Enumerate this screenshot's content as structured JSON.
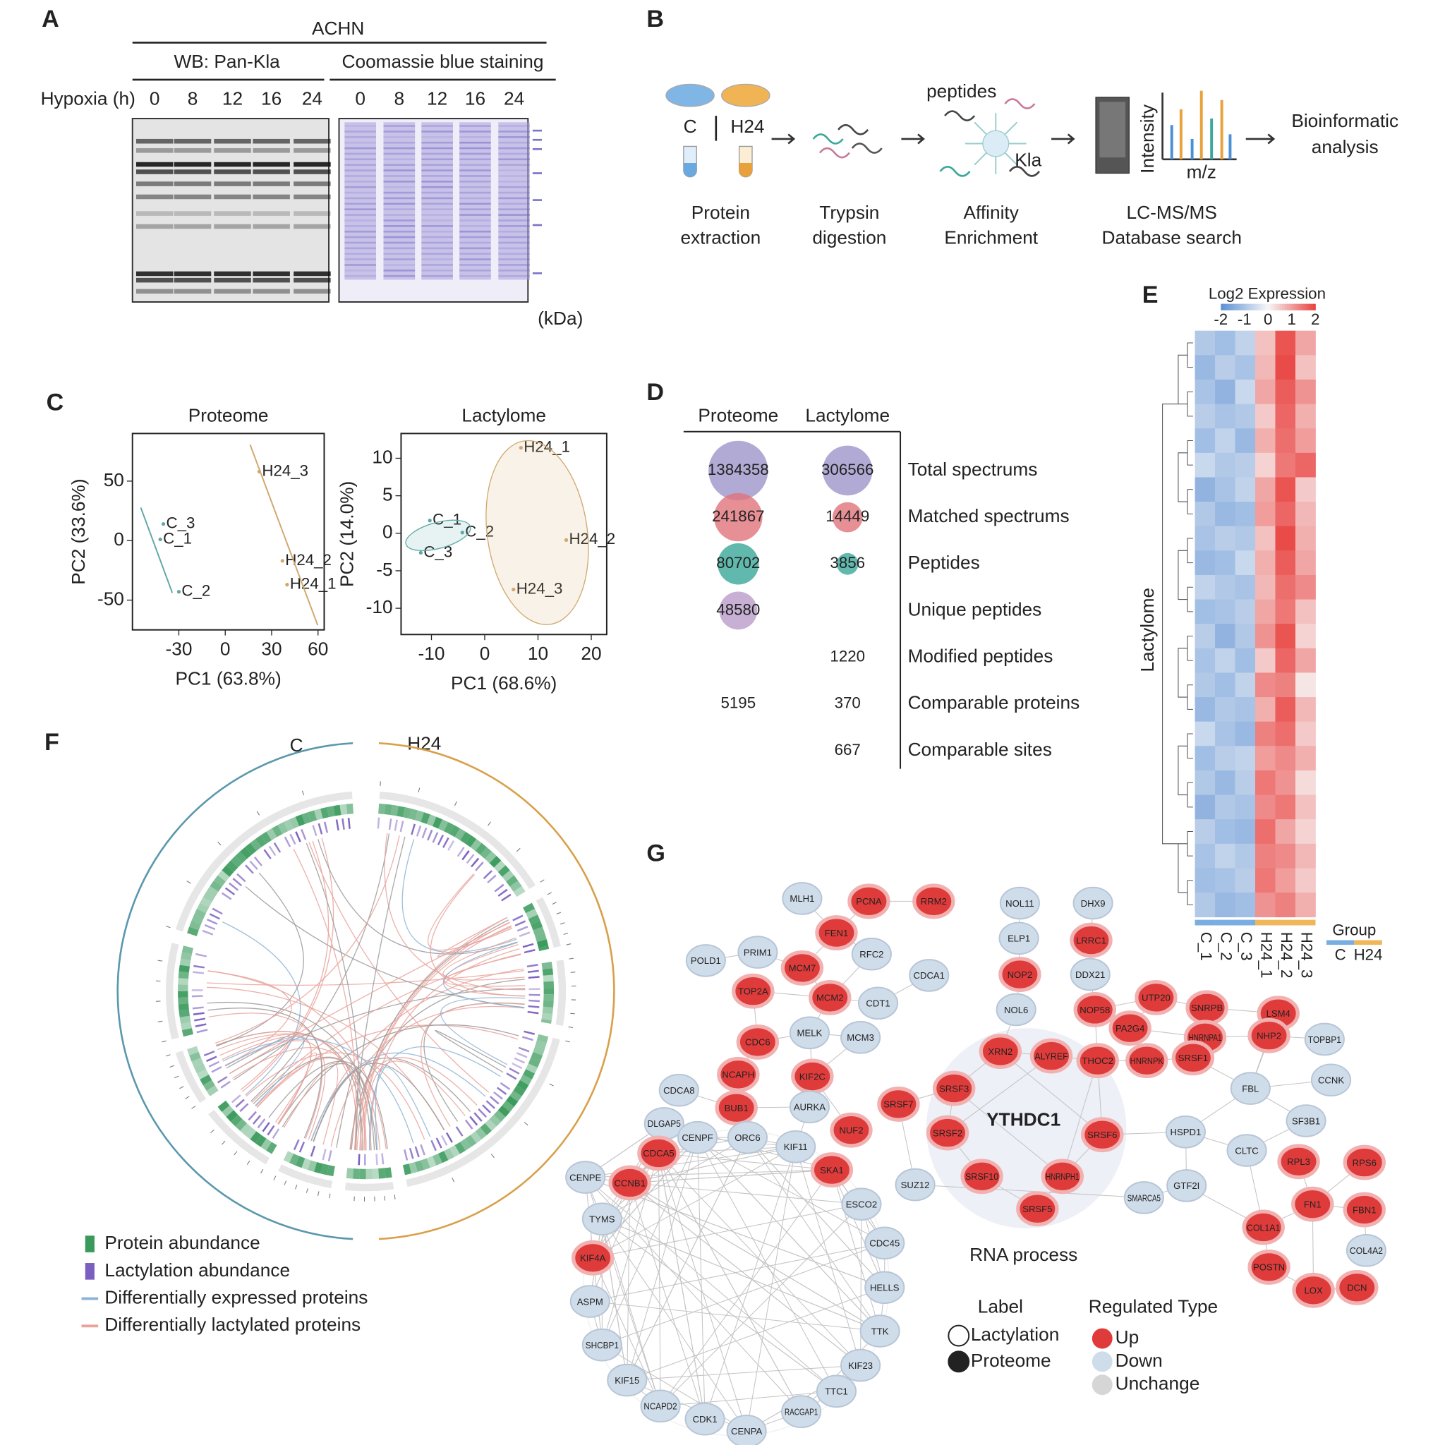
{
  "panels": {
    "A": {
      "letter": "A",
      "cell_line": "ACHN",
      "wb_label": "WB: Pan-Kla",
      "coomassie_label": "Coomassie blue staining",
      "hypoxia_label": "Hypoxia (h)",
      "wb_times": [
        "0",
        "8",
        "12",
        "16",
        "24"
      ],
      "cb_times": [
        "0",
        "8",
        "12",
        "16",
        "24"
      ],
      "kda_unit": "(kDa)"
    },
    "B": {
      "letter": "B",
      "groups": [
        "C",
        "H24"
      ],
      "peptides": "peptides",
      "kla": "Kla",
      "intensity": "Intensity",
      "mz": "m/z",
      "steps": [
        [
          "Protein",
          "extraction"
        ],
        [
          "Trypsin",
          "digestion"
        ],
        [
          "Affinity",
          "Enrichment"
        ],
        [
          "LC-MS/MS",
          "Database search"
        ]
      ],
      "final": [
        "Bioinformatic",
        "analysis"
      ]
    },
    "C": {
      "letter": "C",
      "plots": [
        {
          "title": "Proteome",
          "xlabel": "PC1 (63.8%)",
          "ylabel": "PC2 (33.6%)",
          "xlim": [
            -60,
            64
          ],
          "ylim": [
            -75,
            90
          ],
          "xticks": [
            -30,
            0,
            30,
            60
          ],
          "yticks": [
            -50,
            0,
            50
          ],
          "series": [
            {
              "color": "#5fa8a6",
              "labels": [
                "C_3",
                "C_1",
                "C_2"
              ],
              "x": [
                -40,
                -42,
                -30
              ],
              "y": [
                14,
                1,
                -43
              ]
            },
            {
              "color": "#d1a86c",
              "labels": [
                "H24_3",
                "H24_2",
                "H24_1"
              ],
              "x": [
                22,
                37,
                40
              ],
              "y": [
                58,
                -17,
                -37
              ]
            }
          ]
        },
        {
          "title": "Lactylome",
          "xlabel": "PC1 (68.6%)",
          "ylabel": "PC2 (14.0%)",
          "xlim": [
            -15.7,
            22.9
          ],
          "ylim": [
            -13.5,
            13.3
          ],
          "xticks": [
            -10,
            0,
            10,
            20
          ],
          "yticks": [
            -10,
            -5,
            0,
            5,
            10
          ],
          "series": [
            {
              "color": "#5fa8a6",
              "labels": [
                "C_1",
                "C_2",
                "C_3"
              ],
              "x": [
                -10.3,
                -4.2,
                -12
              ],
              "y": [
                1.7,
                0.1,
                -2.6
              ]
            },
            {
              "color": "#d1a86c",
              "labels": [
                "H24_1",
                "H24_2",
                "H24_3"
              ],
              "x": [
                6.8,
                15.3,
                5.4
              ],
              "y": [
                11.4,
                -0.9,
                -7.5
              ]
            }
          ]
        }
      ]
    },
    "D": {
      "letter": "D",
      "columns": [
        "Proteome",
        "Lactylome"
      ],
      "rows": [
        {
          "label": "Total spectrums",
          "proteome": 1384358,
          "lactylome": 306566,
          "color": "#9d95c9"
        },
        {
          "label": "Matched spectrums",
          "proteome": 241867,
          "lactylome": 14449,
          "color": "#e0737b"
        },
        {
          "label": "Peptides",
          "proteome": 80702,
          "lactylome": 3856,
          "color": "#3aa89a"
        },
        {
          "label": "Unique peptides",
          "proteome": 48580,
          "lactylome": null,
          "color": "#b99cc9"
        },
        {
          "label": "Modified peptides",
          "proteome": null,
          "lactylome": 1220,
          "color": null
        },
        {
          "label": "Comparable proteins",
          "proteome": 5195,
          "lactylome": 370,
          "color": null
        },
        {
          "label": "Comparable sites",
          "proteome": null,
          "lactylome": 667,
          "color": null
        }
      ]
    },
    "E": {
      "letter": "E",
      "legend_title": "Log2 Expression",
      "colormap": [
        "#5b8fd4",
        "#f7f7f7",
        "#e8423f"
      ],
      "clim": [
        -2,
        2
      ],
      "ticks": [
        -2,
        -1,
        0,
        1,
        2
      ],
      "ylabel": "Lactylome",
      "group_title": "Group",
      "groups": [
        {
          "name": "C",
          "color": "#7aaee0"
        },
        {
          "name": "H24",
          "color": "#f0b65a"
        }
      ],
      "columns": [
        {
          "label": "C_1",
          "group": "C"
        },
        {
          "label": "C_2",
          "group": "C"
        },
        {
          "label": "C_3",
          "group": "C"
        },
        {
          "label": "H24_1",
          "group": "H24"
        },
        {
          "label": "H24_2",
          "group": "H24"
        },
        {
          "label": "H24_3",
          "group": "H24"
        }
      ],
      "values": [
        [
          -0.9,
          -1.1,
          -0.7,
          0.6,
          1.8,
          0.9
        ],
        [
          -1.2,
          -0.8,
          -1.0,
          0.7,
          1.9,
          0.6
        ],
        [
          -1.0,
          -1.3,
          -0.6,
          0.9,
          1.7,
          1.1
        ],
        [
          -0.8,
          -1.0,
          -0.9,
          0.5,
          1.6,
          0.8
        ],
        [
          -1.1,
          -0.7,
          -1.2,
          0.8,
          1.5,
          1.0
        ],
        [
          -0.6,
          -0.9,
          -0.8,
          0.4,
          1.4,
          1.6
        ],
        [
          -1.3,
          -1.0,
          -0.7,
          0.9,
          1.8,
          0.5
        ],
        [
          -0.9,
          -1.2,
          -1.1,
          1.0,
          1.6,
          0.7
        ],
        [
          -1.0,
          -0.8,
          -0.9,
          0.6,
          1.9,
          0.8
        ],
        [
          -1.2,
          -1.1,
          -0.6,
          0.8,
          1.7,
          0.9
        ],
        [
          -0.7,
          -0.9,
          -1.0,
          0.7,
          1.5,
          1.2
        ],
        [
          -1.1,
          -1.0,
          -0.8,
          0.9,
          1.4,
          0.6
        ],
        [
          -0.8,
          -1.3,
          -0.9,
          1.1,
          1.8,
          0.4
        ],
        [
          -1.0,
          -0.7,
          -1.1,
          0.5,
          1.6,
          0.9
        ],
        [
          -0.9,
          -1.1,
          -0.7,
          1.2,
          1.3,
          0.2
        ],
        [
          -1.2,
          -0.9,
          -1.0,
          0.8,
          1.7,
          0.7
        ],
        [
          -0.6,
          -1.0,
          -1.2,
          1.3,
          1.5,
          0.5
        ],
        [
          -1.1,
          -0.8,
          -0.7,
          1.0,
          1.2,
          0.8
        ],
        [
          -0.9,
          -1.2,
          -0.8,
          1.4,
          1.1,
          0.3
        ],
        [
          -1.3,
          -0.9,
          -1.0,
          1.2,
          1.4,
          0.6
        ],
        [
          -0.8,
          -1.1,
          -1.2,
          1.5,
          0.9,
          0.4
        ],
        [
          -1.0,
          -0.7,
          -0.9,
          1.3,
          1.2,
          0.7
        ],
        [
          -1.1,
          -1.0,
          -0.8,
          1.4,
          1.0,
          0.5
        ],
        [
          -0.9,
          -1.2,
          -1.1,
          1.1,
          1.3,
          0.8
        ]
      ]
    },
    "F": {
      "letter": "F",
      "groups": [
        {
          "name": "C",
          "color": "#5b98ad"
        },
        {
          "name": "H24",
          "color": "#d9a04a"
        }
      ],
      "legend": [
        {
          "label": "Protein abundance",
          "color": "#3a9a5c"
        },
        {
          "label": "Lactylation abundance",
          "color": "#7b5fc0"
        },
        {
          "label": "Differentially expressed proteins",
          "color": "#8db4d6"
        },
        {
          "label": "Differentially lactylated proteins",
          "color": "#e9a39c"
        }
      ]
    },
    "G": {
      "letter": "G",
      "hub": "YTHDC1",
      "module_label": "RNA process",
      "label_title": "Label",
      "label_types": [
        {
          "name": "Lactylation",
          "fill": "#ffffff"
        },
        {
          "name": "Proteome",
          "fill": "#222222"
        }
      ],
      "regulated_title": "Regulated Type",
      "regulated_types": [
        {
          "name": "Up",
          "color": "#e03b3b"
        },
        {
          "name": "Down",
          "color": "#cfdcea"
        },
        {
          "name": "Unchange",
          "color": "#d6d6d6"
        }
      ],
      "nodes": [
        {
          "label": "MLH1",
          "type": "Down"
        },
        {
          "label": "PCNA",
          "type": "Up"
        },
        {
          "label": "RRM2",
          "type": "Up"
        },
        {
          "label": "FEN1",
          "type": "Up"
        },
        {
          "label": "PRIM1",
          "type": "Down"
        },
        {
          "label": "POLD1",
          "type": "Down"
        },
        {
          "label": "RFC2",
          "type": "Down"
        },
        {
          "label": "MCM7",
          "type": "Up"
        },
        {
          "label": "CDCA1",
          "type": "Down"
        },
        {
          "label": "TOP2A",
          "type": "Up"
        },
        {
          "label": "MCM2",
          "type": "Up"
        },
        {
          "label": "CDT1",
          "type": "Down"
        },
        {
          "label": "MELK",
          "type": "Down"
        },
        {
          "label": "MCM3",
          "type": "Down"
        },
        {
          "label": "CDC6",
          "type": "Up"
        },
        {
          "label": "NCAPH",
          "type": "Up"
        },
        {
          "label": "KIF2C",
          "type": "Up"
        },
        {
          "label": "CDCA8",
          "type": "Down"
        },
        {
          "label": "BUB1",
          "type": "Up"
        },
        {
          "label": "AURKA",
          "type": "Down"
        },
        {
          "label": "DLGAP5",
          "type": "Down"
        },
        {
          "label": "CENPF",
          "type": "Down"
        },
        {
          "label": "ORC6",
          "type": "Down"
        },
        {
          "label": "KIF11",
          "type": "Down"
        },
        {
          "label": "NUF2",
          "type": "Up"
        },
        {
          "label": "CDCA5",
          "type": "Up"
        },
        {
          "label": "CCNB1",
          "type": "Up"
        },
        {
          "label": "SKA1",
          "type": "Up"
        },
        {
          "label": "CENPE",
          "type": "Down"
        },
        {
          "label": "TYMS",
          "type": "Down"
        },
        {
          "label": "KIF4A",
          "type": "Up"
        },
        {
          "label": "ASPM",
          "type": "Down"
        },
        {
          "label": "SHCBP1",
          "type": "Down"
        },
        {
          "label": "KIF15",
          "type": "Down"
        },
        {
          "label": "NCAPD2",
          "type": "Down"
        },
        {
          "label": "CDK1",
          "type": "Down"
        },
        {
          "label": "CENPA",
          "type": "Down"
        },
        {
          "label": "RACGAP1",
          "type": "Down"
        },
        {
          "label": "TTC1",
          "type": "Down"
        },
        {
          "label": "KIF23",
          "type": "Down"
        },
        {
          "label": "TTK",
          "type": "Down"
        },
        {
          "label": "HELLS",
          "type": "Down"
        },
        {
          "label": "CDC45",
          "type": "Down"
        },
        {
          "label": "ESCO2",
          "type": "Down"
        },
        {
          "label": "SUZ12",
          "type": "Down"
        },
        {
          "label": "NOL11",
          "type": "Down"
        },
        {
          "label": "DHX9",
          "type": "Down"
        },
        {
          "label": "ELP1",
          "type": "Down"
        },
        {
          "label": "LRRC1",
          "type": "Up"
        },
        {
          "label": "NOP2",
          "type": "Up"
        },
        {
          "label": "DDX21",
          "type": "Down"
        },
        {
          "label": "NOL6",
          "type": "Down"
        },
        {
          "label": "NOP58",
          "type": "Up"
        },
        {
          "label": "UTP20",
          "type": "Up"
        },
        {
          "label": "SNRPB",
          "type": "Up"
        },
        {
          "label": "LSM4",
          "type": "Up"
        },
        {
          "label": "PA2G4",
          "type": "Up"
        },
        {
          "label": "HNRNPA1",
          "type": "Up"
        },
        {
          "label": "NHP2",
          "type": "Up"
        },
        {
          "label": "TOPBP1",
          "type": "Down"
        },
        {
          "label": "HNRNPK",
          "type": "Up"
        },
        {
          "label": "SRSF1",
          "type": "Up"
        },
        {
          "label": "FBL",
          "type": "Down"
        },
        {
          "label": "CCNK",
          "type": "Down"
        },
        {
          "label": "SF3B1",
          "type": "Down"
        },
        {
          "label": "HSPD1",
          "type": "Down"
        },
        {
          "label": "CLTC",
          "type": "Down"
        },
        {
          "label": "GTF2I",
          "type": "Down"
        },
        {
          "label": "SMARCA5",
          "type": "Down"
        },
        {
          "label": "RPL3",
          "type": "Up"
        },
        {
          "label": "RPS6",
          "type": "Up"
        },
        {
          "label": "COL1A1",
          "type": "Up"
        },
        {
          "label": "FN1",
          "type": "Up"
        },
        {
          "label": "FBN1",
          "type": "Up"
        },
        {
          "label": "COL4A2",
          "type": "Down"
        },
        {
          "label": "POSTN",
          "type": "Up"
        },
        {
          "label": "LOX",
          "type": "Up"
        },
        {
          "label": "DCN",
          "type": "Up"
        },
        {
          "label": "XRN2",
          "type": "Up"
        },
        {
          "label": "ALYREF",
          "type": "Up"
        },
        {
          "label": "THOC2",
          "type": "Up"
        },
        {
          "label": "SRSF3",
          "type": "Up"
        },
        {
          "label": "SRSF7",
          "type": "Up"
        },
        {
          "label": "SRSF2",
          "type": "Up"
        },
        {
          "label": "SRSF6",
          "type": "Up"
        },
        {
          "label": "SRSF10",
          "type": "Up"
        },
        {
          "label": "HNRNPH1",
          "type": "Up"
        },
        {
          "label": "SRSF5",
          "type": "Up"
        }
      ]
    }
  }
}
